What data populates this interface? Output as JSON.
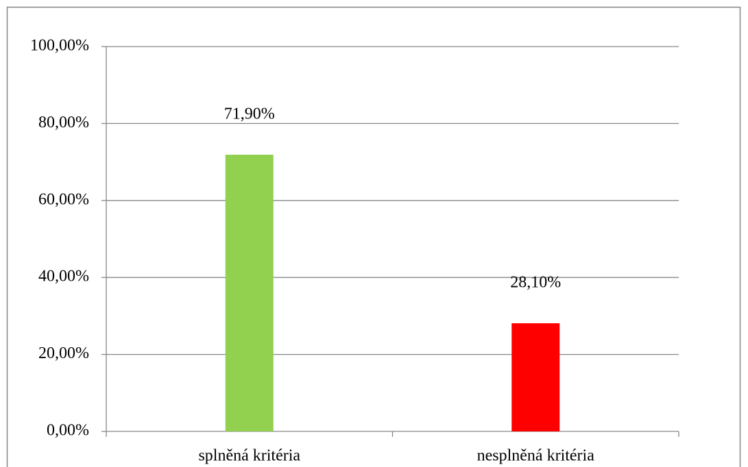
{
  "chart_data": {
    "type": "bar",
    "categories": [
      "splněná kritéria",
      "nesplněná kritéria"
    ],
    "values": [
      71.9,
      28.1
    ],
    "value_labels": [
      "71,90%",
      "28,10%"
    ],
    "colors": [
      "#92d050",
      "#ff0000"
    ],
    "ylim": [
      0,
      100
    ],
    "yticks": [
      {
        "value": 0,
        "label": "0,00%"
      },
      {
        "value": 20,
        "label": "20,00%"
      },
      {
        "value": 40,
        "label": "40,00%"
      },
      {
        "value": 60,
        "label": "60,00%"
      },
      {
        "value": 80,
        "label": "80,00%"
      },
      {
        "value": 100,
        "label": "100,00%"
      }
    ],
    "grid": true
  }
}
